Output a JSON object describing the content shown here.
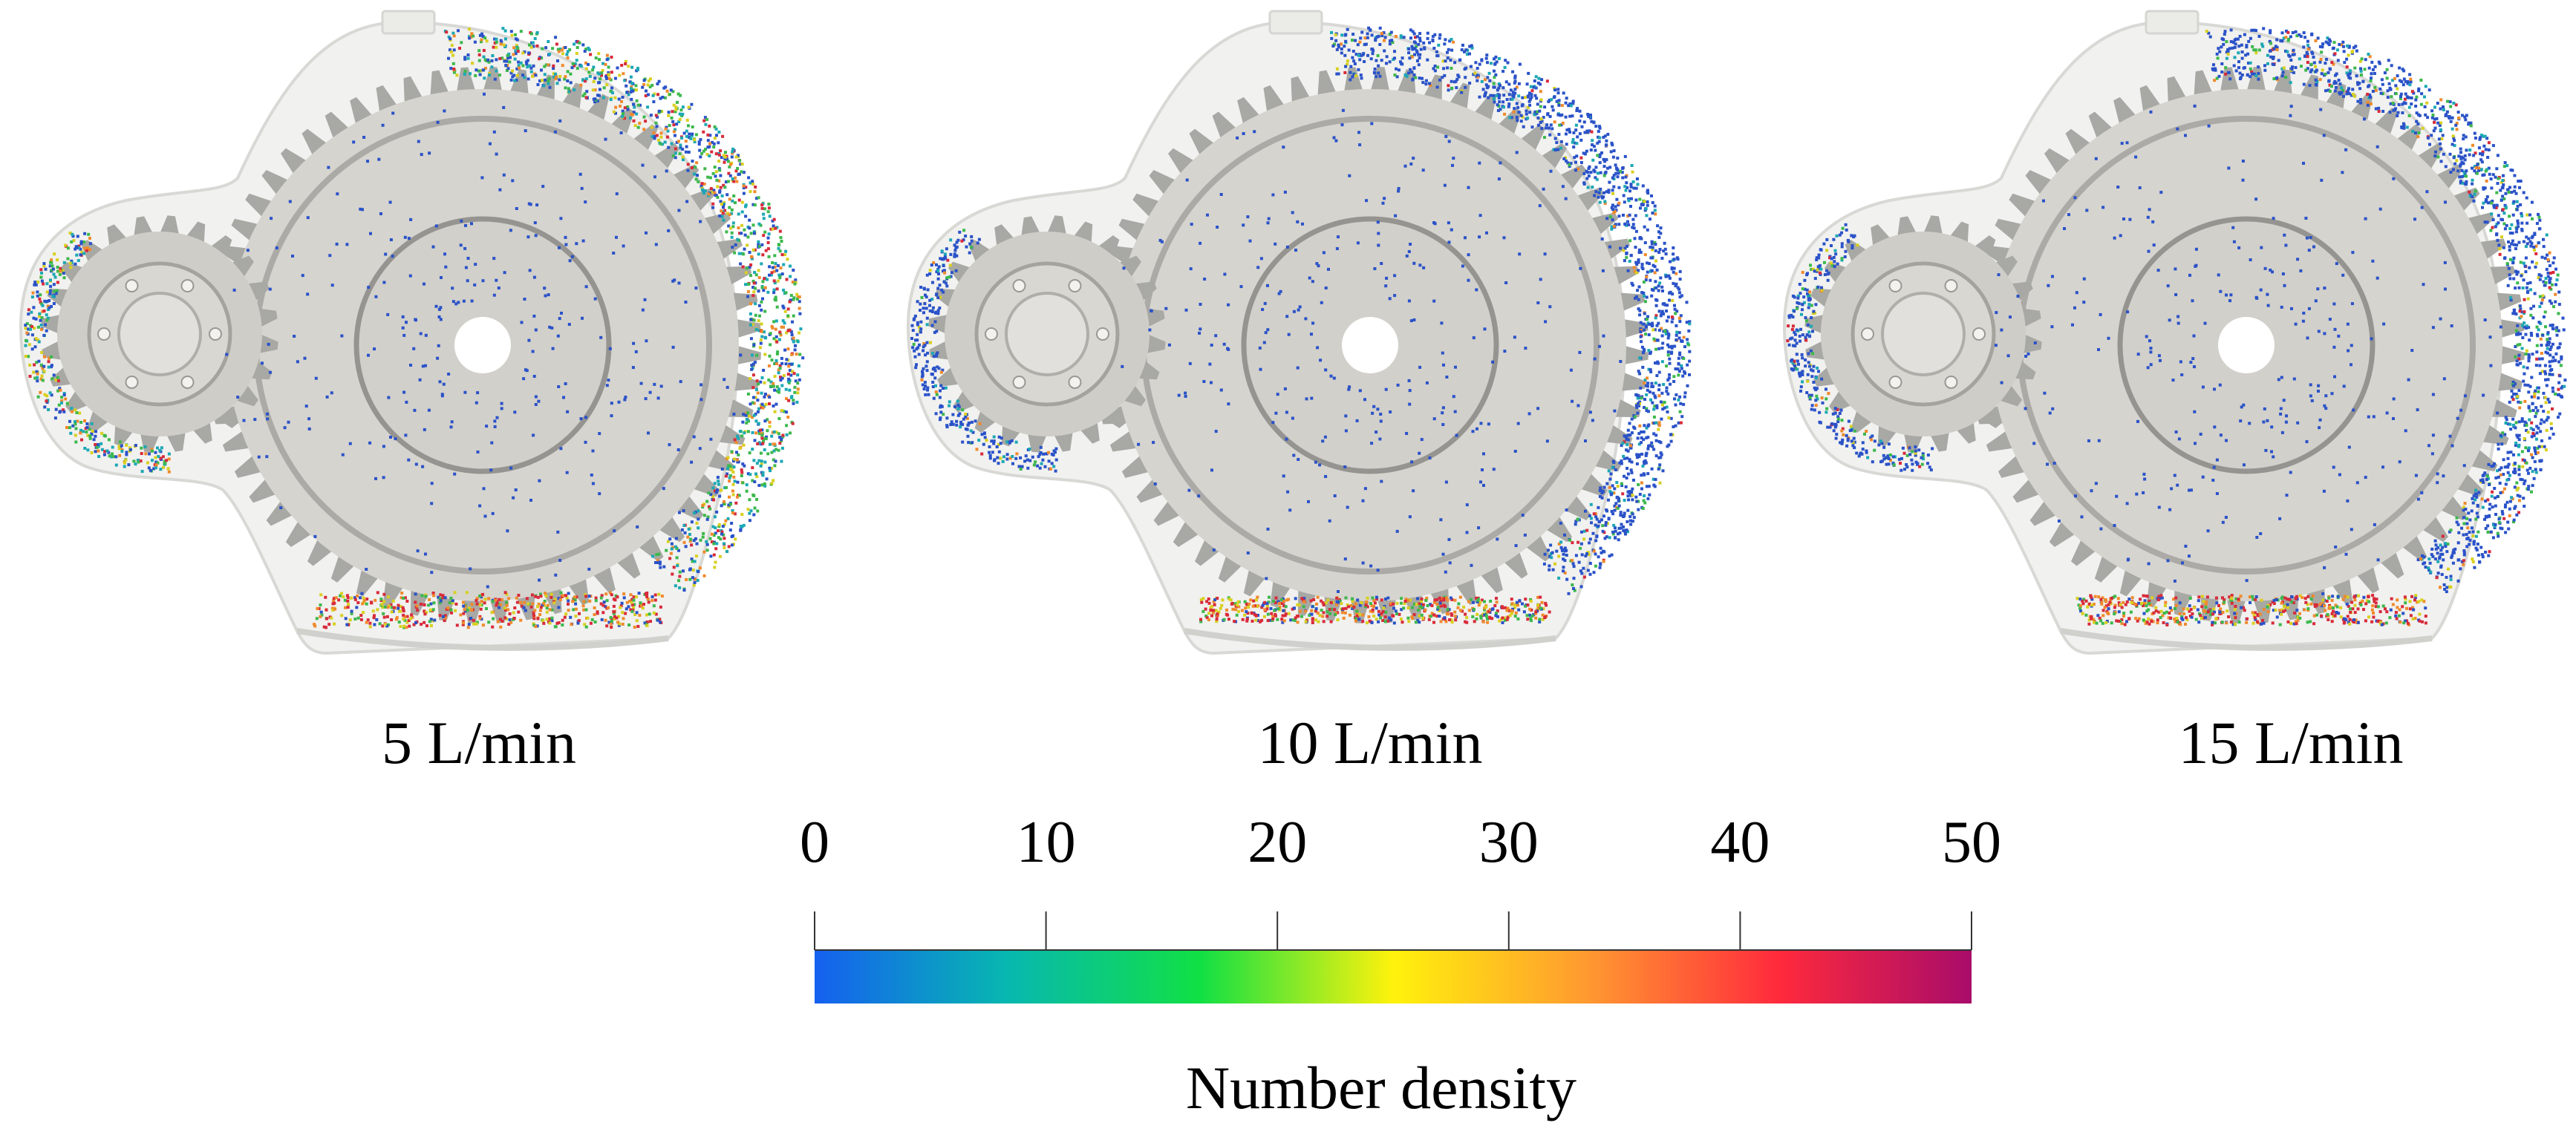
{
  "panels": [
    {
      "label": "5 L/min",
      "dist": {
        "blue": 0.3,
        "cyan": 0.18,
        "green": 0.2,
        "yellow": 0.12,
        "orange": 0.1,
        "red": 0.1
      },
      "pool": 0.95
    },
    {
      "label": "10 L/min",
      "dist": {
        "blue": 0.78,
        "cyan": 0.08,
        "green": 0.06,
        "yellow": 0.03,
        "orange": 0.03,
        "red": 0.02
      },
      "pool": 0.7
    },
    {
      "label": "15 L/min",
      "dist": {
        "blue": 0.7,
        "cyan": 0.1,
        "green": 0.08,
        "yellow": 0.04,
        "orange": 0.04,
        "red": 0.04
      },
      "pool": 0.8
    }
  ],
  "colorbar": {
    "title": "Number density",
    "min": 0,
    "max": 50,
    "ticks": [
      "0",
      "10",
      "20",
      "30",
      "40",
      "50"
    ],
    "colors": [
      "#1560f0",
      "#07b8b0",
      "#11e044",
      "#fff20c",
      "#ff9a30",
      "#ff2a3c",
      "#a80c6a"
    ]
  }
}
